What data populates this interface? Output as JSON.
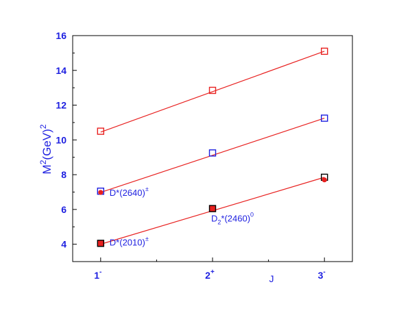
{
  "chart_data": {
    "type": "scatter",
    "x_categories": [
      "1",
      "2",
      "3"
    ],
    "x_category_superscripts": [
      "-",
      "+",
      "-"
    ],
    "x_tick_positions": [
      1,
      2,
      3
    ],
    "xlim": [
      0.75,
      3.25
    ],
    "ylim": [
      3,
      16
    ],
    "y_ticks": [
      4,
      6,
      8,
      10,
      12,
      14,
      16
    ],
    "y_minor_ticks": [
      3,
      5,
      7,
      9,
      11,
      13,
      15
    ],
    "x_minor_ticks": [
      1.5,
      2.5
    ],
    "xlabel": "J",
    "ylabel": {
      "base": "M",
      "sup1": "2",
      "mid": "(GeV)",
      "sup2": "2"
    },
    "series": [
      {
        "marker": "open-square",
        "color": "#e8201f",
        "points": [
          {
            "x": 1,
            "y": 10.5
          },
          {
            "x": 2,
            "y": 12.85
          },
          {
            "x": 3,
            "y": 15.1
          }
        ]
      },
      {
        "marker": "open-square",
        "color": "#1c1ee0",
        "points": [
          {
            "x": 1,
            "y": 7.05
          },
          {
            "x": 2,
            "y": 9.25
          },
          {
            "x": 3,
            "y": 11.25
          }
        ]
      },
      {
        "marker": "filled-square",
        "color": "#000000",
        "fill": "#e8201f",
        "points": [
          {
            "x": 1,
            "y": 4.05
          },
          {
            "x": 2,
            "y": 6.05
          }
        ]
      },
      {
        "marker": "open-square",
        "color": "#000000",
        "points": [
          {
            "x": 3,
            "y": 7.85
          }
        ]
      },
      {
        "marker": "filled-circle",
        "color": "#e8201f",
        "points": [
          {
            "x": 1,
            "y": 6.98
          },
          {
            "x": 3,
            "y": 7.7
          }
        ]
      }
    ],
    "fit_lines": [
      {
        "color": "#e8201f",
        "x": [
          1,
          3
        ],
        "y": [
          10.45,
          15.1
        ]
      },
      {
        "color": "#e8201f",
        "x": [
          1,
          3
        ],
        "y": [
          6.98,
          11.25
        ]
      },
      {
        "color": "#e8201f",
        "x": [
          1,
          3
        ],
        "y": [
          4.0,
          7.85
        ]
      }
    ],
    "annotations": [
      {
        "id": "d2640",
        "x": 1,
        "y": 7.05,
        "base": "D*(2640)",
        "sub": "",
        "sup": "±"
      },
      {
        "id": "d2460",
        "x": 2,
        "y": 6.05,
        "base": "D",
        "sub": "2",
        "rest": "*(2460)",
        "sup": "0"
      },
      {
        "id": "d2010",
        "x": 1,
        "y": 4.05,
        "base": "D*(2010)",
        "sub": "",
        "sup": "±"
      }
    ],
    "axis_color": "#1c1ee0",
    "line_color": "#e8201f"
  }
}
